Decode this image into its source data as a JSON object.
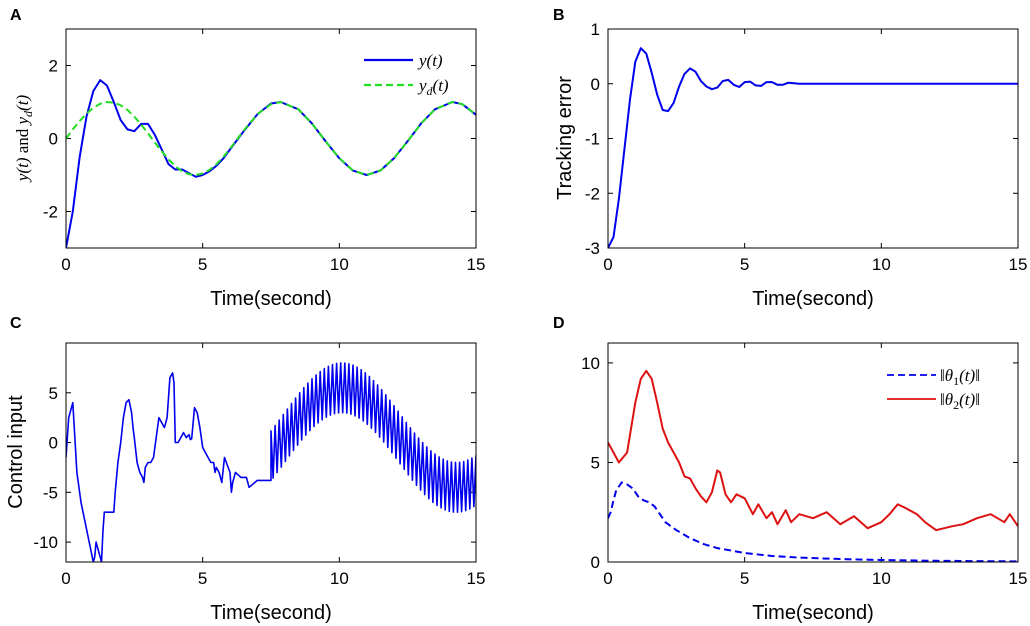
{
  "colors": {
    "blue": "#0000ee",
    "green": "#22dd22",
    "red": "#dd1111",
    "axis": "#000000"
  },
  "panel_letters": [
    "A",
    "B",
    "C",
    "D"
  ],
  "chart_data": [
    {
      "type": "line",
      "panel": "A",
      "xlabel": "Time(second)",
      "ylabel": "y(t) and y_d(t)",
      "xlim": [
        0,
        15
      ],
      "ylim": [
        -3,
        3
      ],
      "xticks": [
        "0",
        "5",
        "10",
        "15"
      ],
      "yticks": [
        "-2",
        "0",
        "2"
      ],
      "legend_position": "top-right",
      "series": [
        {
          "name": "y(t)",
          "style": "solid",
          "color": "#0000ee",
          "x": [
            0,
            0.25,
            0.5,
            0.75,
            1.0,
            1.25,
            1.5,
            1.75,
            2.0,
            2.25,
            2.5,
            2.75,
            3.0,
            3.25,
            3.5,
            3.75,
            4.0,
            4.25,
            4.5,
            4.75,
            5.0,
            5.25,
            5.5,
            5.75,
            6.0,
            6.5,
            7.0,
            7.5,
            7.854,
            8.5,
            9.0,
            9.5,
            10.0,
            10.5,
            11.0,
            11.5,
            12.0,
            12.5,
            13.0,
            13.5,
            14.137,
            14.5,
            15.0
          ],
          "y": [
            -3.0,
            -2.0,
            -0.5,
            0.6,
            1.3,
            1.6,
            1.45,
            1.0,
            0.5,
            0.25,
            0.2,
            0.4,
            0.4,
            0.1,
            -0.3,
            -0.7,
            -0.85,
            -0.85,
            -0.95,
            -1.05,
            -1.0,
            -0.9,
            -0.75,
            -0.55,
            -0.3,
            0.2,
            0.66,
            0.96,
            1.0,
            0.8,
            0.41,
            -0.08,
            -0.54,
            -0.88,
            -1.0,
            -0.88,
            -0.54,
            -0.07,
            0.42,
            0.8,
            1.0,
            0.94,
            0.65
          ]
        },
        {
          "name": "y_d(t)",
          "style": "dashed",
          "color": "#22dd22",
          "x": [
            0,
            0.25,
            0.5,
            0.75,
            1.0,
            1.25,
            1.5,
            1.75,
            2.0,
            2.25,
            2.5,
            2.75,
            3.0,
            3.25,
            3.5,
            3.75,
            4.0,
            4.25,
            4.5,
            4.75,
            5.0,
            5.25,
            5.5,
            5.75,
            6.0,
            6.5,
            7.0,
            7.5,
            7.854,
            8.5,
            9.0,
            9.5,
            10.0,
            10.5,
            11.0,
            11.5,
            12.0,
            12.5,
            13.0,
            13.5,
            14.137,
            14.5,
            15.0
          ],
          "y": [
            0.0,
            0.25,
            0.48,
            0.68,
            0.84,
            0.95,
            1.0,
            0.98,
            0.91,
            0.78,
            0.6,
            0.38,
            0.14,
            -0.11,
            -0.35,
            -0.57,
            -0.76,
            -0.9,
            -0.98,
            -1.0,
            -0.96,
            -0.86,
            -0.71,
            -0.51,
            -0.28,
            0.22,
            0.66,
            0.94,
            1.0,
            0.8,
            0.41,
            -0.08,
            -0.54,
            -0.88,
            -1.0,
            -0.88,
            -0.54,
            -0.07,
            0.42,
            0.8,
            1.0,
            0.94,
            0.65
          ]
        }
      ]
    },
    {
      "type": "line",
      "panel": "B",
      "xlabel": "Time(second)",
      "ylabel": "Tracking error",
      "xlim": [
        0,
        15
      ],
      "ylim": [
        -3,
        1
      ],
      "xticks": [
        "0",
        "5",
        "10",
        "15"
      ],
      "yticks": [
        "-3",
        "-2",
        "-1",
        "0",
        "1"
      ],
      "series": [
        {
          "color": "#0000ee",
          "x": [
            0,
            0.2,
            0.4,
            0.6,
            0.8,
            1.0,
            1.2,
            1.4,
            1.6,
            1.8,
            2.0,
            2.2,
            2.4,
            2.6,
            2.8,
            3.0,
            3.2,
            3.4,
            3.6,
            3.8,
            4.0,
            4.2,
            4.4,
            4.6,
            4.8,
            5.0,
            5.2,
            5.4,
            5.6,
            5.8,
            6.0,
            6.2,
            6.4,
            6.6,
            6.8,
            7.0,
            8.0,
            9.0,
            10.0,
            11.0,
            12.0,
            13.0,
            14.0,
            15.0
          ],
          "y": [
            -3.0,
            -2.8,
            -2.1,
            -1.2,
            -0.3,
            0.4,
            0.65,
            0.55,
            0.2,
            -0.2,
            -0.48,
            -0.5,
            -0.35,
            -0.05,
            0.18,
            0.28,
            0.22,
            0.05,
            -0.05,
            -0.1,
            -0.07,
            0.05,
            0.07,
            -0.02,
            -0.06,
            0.03,
            0.04,
            -0.03,
            -0.04,
            0.03,
            0.03,
            -0.02,
            -0.02,
            0.02,
            0.01,
            0.0,
            0.0,
            0.0,
            0.0,
            0.0,
            0.0,
            0.0,
            0.0,
            0.0
          ]
        }
      ]
    },
    {
      "type": "line",
      "panel": "C",
      "xlabel": "Time(second)",
      "ylabel": "Control input",
      "xlim": [
        0,
        15
      ],
      "ylim": [
        -12,
        10
      ],
      "xticks": [
        "0",
        "5",
        "10",
        "15"
      ],
      "yticks": [
        "-10",
        "-5",
        "0",
        "5"
      ],
      "series": [
        {
          "color": "#0000ee",
          "x": [
            0,
            0.1,
            0.25,
            0.4,
            0.55,
            0.7,
            0.85,
            1.0,
            1.05,
            1.1,
            1.2,
            1.3,
            1.35,
            1.4,
            1.5,
            1.6,
            1.7,
            1.75,
            1.8,
            1.9,
            2.0,
            2.1,
            2.2,
            2.3,
            2.4,
            2.45,
            2.5,
            2.6,
            2.7,
            2.8,
            2.85,
            2.9,
            3.0,
            3.1,
            3.2,
            3.3,
            3.4,
            3.5,
            3.6,
            3.7,
            3.8,
            3.9,
            3.95,
            4.0,
            4.1,
            4.2,
            4.3,
            4.4,
            4.5,
            4.55,
            4.6,
            4.7,
            4.8,
            4.9,
            5.0,
            5.1,
            5.2,
            5.3,
            5.4,
            5.45,
            5.5,
            5.6,
            5.7,
            5.8,
            6.0,
            6.05,
            6.1,
            6.2,
            6.4,
            6.6,
            6.7,
            7.0,
            7.5
          ],
          "y": [
            -1.5,
            2.5,
            4.0,
            -3.0,
            -6.0,
            -8.0,
            -10.0,
            -12.0,
            -11.5,
            -10.0,
            -11.0,
            -12.0,
            -9.0,
            -7.0,
            -7.0,
            -7.0,
            -7.0,
            -7.0,
            -5.0,
            -2.0,
            0.0,
            2.5,
            4.0,
            4.3,
            3.0,
            1.5,
            0.5,
            -2.0,
            -3.0,
            -3.5,
            -4.0,
            -2.5,
            -2.0,
            -2.0,
            -1.5,
            0.5,
            2.5,
            2.0,
            1.5,
            2.5,
            6.5,
            7.0,
            6.0,
            0.0,
            0.0,
            0.5,
            1.0,
            0.5,
            0.8,
            0.3,
            0.4,
            3.5,
            3.0,
            1.5,
            -0.5,
            -1.0,
            -1.5,
            -2.0,
            -2.0,
            -3.0,
            -2.5,
            -3.0,
            -4.0,
            -1.5,
            -3.0,
            -5.0,
            -4.0,
            -3.0,
            -3.5,
            -3.5,
            -4.5,
            -3.8,
            -3.8
          ]
        }
      ],
      "oscillation_region": {
        "x_start": 7.5,
        "x_end": 15,
        "center": "0.5 + 5.0*sin(0.75*(t-8.0))",
        "amplitude_y": 2.5
      }
    },
    {
      "type": "line",
      "panel": "D",
      "xlabel": "Time(second)",
      "xlim": [
        0,
        15
      ],
      "ylim": [
        0,
        11
      ],
      "xticks": [
        "0",
        "5",
        "10",
        "15"
      ],
      "yticks": [
        "0",
        "5",
        "10"
      ],
      "legend_position": "top-right",
      "series": [
        {
          "name": "||θ1(t)||",
          "style": "dashed",
          "color": "#0000ee",
          "x": [
            0,
            0.1,
            0.2,
            0.3,
            0.5,
            0.7,
            0.9,
            1.1,
            1.3,
            1.5,
            1.7,
            1.9,
            2.1,
            2.3,
            2.5,
            3.0,
            3.5,
            4.0,
            5.0,
            6.0,
            7.0,
            8.0,
            9.0,
            10.0,
            11.0,
            12.0,
            13.0,
            14.0,
            15.0
          ],
          "y": [
            2.2,
            2.5,
            3.1,
            3.6,
            4.0,
            3.9,
            3.7,
            3.3,
            3.1,
            3.0,
            2.8,
            2.4,
            2.0,
            1.8,
            1.6,
            1.2,
            0.9,
            0.7,
            0.45,
            0.3,
            0.22,
            0.17,
            0.13,
            0.1,
            0.08,
            0.06,
            0.05,
            0.04,
            0.03
          ]
        },
        {
          "name": "||θ2(t)||",
          "style": "solid",
          "color": "#dd1111",
          "x": [
            0,
            0.2,
            0.4,
            0.7,
            1.0,
            1.2,
            1.4,
            1.6,
            1.8,
            2.0,
            2.2,
            2.4,
            2.6,
            2.8,
            3.0,
            3.2,
            3.4,
            3.6,
            3.8,
            4.0,
            4.1,
            4.3,
            4.5,
            4.7,
            5.0,
            5.3,
            5.5,
            5.8,
            6.0,
            6.2,
            6.5,
            6.7,
            7.0,
            7.5,
            8.0,
            8.5,
            9.0,
            9.5,
            10.0,
            10.3,
            10.6,
            10.9,
            11.3,
            11.6,
            12.0,
            12.3,
            12.6,
            13.0,
            13.5,
            14.0,
            14.5,
            14.7,
            15.0
          ],
          "y": [
            6.0,
            5.5,
            5.0,
            5.5,
            8.0,
            9.2,
            9.6,
            9.2,
            8.0,
            6.7,
            6.0,
            5.5,
            5.0,
            4.3,
            4.2,
            3.7,
            3.3,
            3.0,
            3.5,
            4.6,
            4.5,
            3.4,
            3.0,
            3.4,
            3.2,
            2.4,
            2.9,
            2.2,
            2.5,
            1.9,
            2.6,
            2.0,
            2.4,
            2.2,
            2.5,
            1.9,
            2.3,
            1.7,
            2.0,
            2.4,
            2.9,
            2.7,
            2.4,
            2.0,
            1.6,
            1.7,
            1.8,
            1.9,
            2.2,
            2.4,
            2.0,
            2.4,
            1.8
          ]
        }
      ]
    }
  ]
}
